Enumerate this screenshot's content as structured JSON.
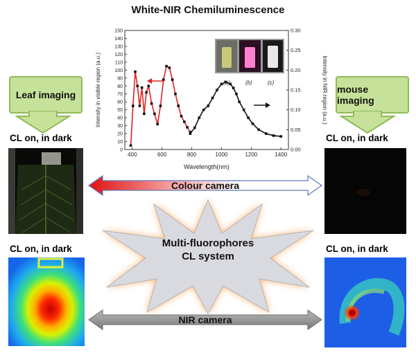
{
  "title": "White-NIR Chemiluminescence",
  "left_callout": "Leaf imaging",
  "right_callout": "mouse imaging",
  "panel_labels": {
    "leaf_color": "CL on, in dark",
    "mouse_color": "CL on, in dark",
    "leaf_nir": "CL on, in dark",
    "mouse_nir": "CL on, in dark"
  },
  "arrows": {
    "top": "Colour camera",
    "bottom": "NIR camera"
  },
  "star_text": {
    "line1": "Multi-fluorophores",
    "line2": "CL system"
  },
  "inset_labels": [
    "(a)",
    "(b)",
    "(c)"
  ],
  "colors": {
    "visible_series": "#e02020",
    "nir_series": "#111111",
    "callout": "#c6e29a"
  },
  "chart_data": {
    "type": "line",
    "xlabel": "Wavelength(nm)",
    "ylabel_left": "Intensity in visible region (a.u.)",
    "ylabel_right": "Intensity in NIR region (a.u.)",
    "xlim": [
      350,
      1450
    ],
    "ylim_left": [
      0,
      150
    ],
    "ylim_right": [
      0,
      0.3
    ],
    "x_ticks": [
      "400",
      "600",
      "800",
      "1000",
      "1200",
      "1400"
    ],
    "y_ticks_left": [
      "0",
      "10",
      "20",
      "30",
      "40",
      "50",
      "60",
      "70",
      "80",
      "90",
      "100",
      "110",
      "120",
      "130",
      "140",
      "150"
    ],
    "y_ticks_right": [
      "0.00",
      "0.05",
      "0.10",
      "0.15",
      "0.20",
      "0.25",
      "0.30"
    ],
    "series": [
      {
        "name": "visible",
        "axis": "left",
        "x": [
          390,
          405,
          420,
          435,
          450,
          465,
          480,
          495,
          510,
          530,
          550,
          570,
          590,
          610,
          630,
          650,
          670,
          690,
          710,
          730,
          750,
          770,
          790
        ],
        "y": [
          5,
          55,
          98,
          80,
          55,
          78,
          45,
          72,
          80,
          58,
          45,
          32,
          55,
          88,
          105,
          103,
          88,
          70,
          55,
          42,
          35,
          28,
          22
        ]
      },
      {
        "name": "NIR",
        "axis": "right",
        "x": [
          790,
          820,
          850,
          880,
          910,
          940,
          970,
          1000,
          1030,
          1060,
          1080,
          1100,
          1120,
          1150,
          1180,
          1210,
          1250,
          1300,
          1350,
          1400
        ],
        "y": [
          0.04,
          0.055,
          0.08,
          0.1,
          0.11,
          0.13,
          0.15,
          0.165,
          0.17,
          0.165,
          0.155,
          0.14,
          0.12,
          0.1,
          0.08,
          0.065,
          0.05,
          0.04,
          0.035,
          0.033
        ]
      }
    ]
  }
}
